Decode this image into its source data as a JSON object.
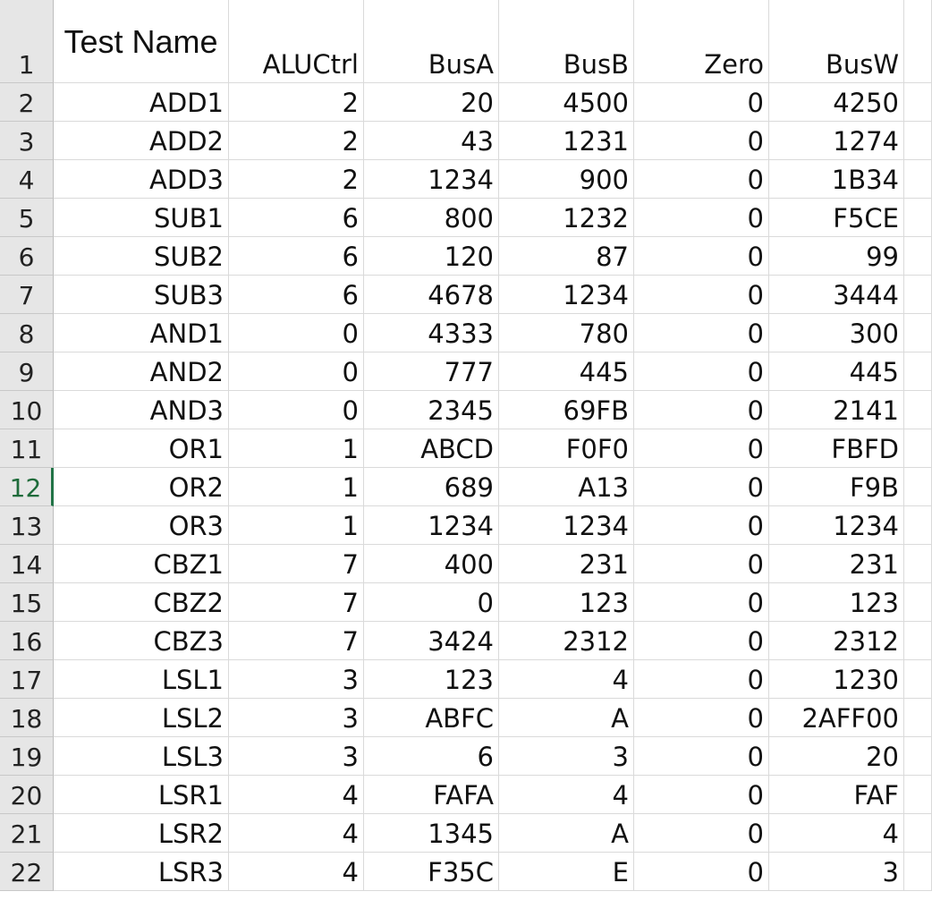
{
  "spreadsheet": {
    "headers": {
      "row_number": "1",
      "test_name": "Test Name",
      "alu_ctrl": "ALUCtrl",
      "bus_a": "BusA",
      "bus_b": "BusB",
      "zero": "Zero",
      "bus_w": "BusW"
    },
    "selected_row": "12",
    "accent_color": "#217346",
    "rows": [
      {
        "row": "2",
        "test_name": "ADD1",
        "alu_ctrl": "2",
        "bus_a": "20",
        "bus_b": "4500",
        "zero": "0",
        "bus_w": "4250"
      },
      {
        "row": "3",
        "test_name": "ADD2",
        "alu_ctrl": "2",
        "bus_a": "43",
        "bus_b": "1231",
        "zero": "0",
        "bus_w": "1274"
      },
      {
        "row": "4",
        "test_name": "ADD3",
        "alu_ctrl": "2",
        "bus_a": "1234",
        "bus_b": "900",
        "zero": "0",
        "bus_w": "1B34"
      },
      {
        "row": "5",
        "test_name": "SUB1",
        "alu_ctrl": "6",
        "bus_a": "800",
        "bus_b": "1232",
        "zero": "0",
        "bus_w": "F5CE"
      },
      {
        "row": "6",
        "test_name": "SUB2",
        "alu_ctrl": "6",
        "bus_a": "120",
        "bus_b": "87",
        "zero": "0",
        "bus_w": "99"
      },
      {
        "row": "7",
        "test_name": "SUB3",
        "alu_ctrl": "6",
        "bus_a": "4678",
        "bus_b": "1234",
        "zero": "0",
        "bus_w": "3444"
      },
      {
        "row": "8",
        "test_name": "AND1",
        "alu_ctrl": "0",
        "bus_a": "4333",
        "bus_b": "780",
        "zero": "0",
        "bus_w": "300"
      },
      {
        "row": "9",
        "test_name": "AND2",
        "alu_ctrl": "0",
        "bus_a": "777",
        "bus_b": "445",
        "zero": "0",
        "bus_w": "445"
      },
      {
        "row": "10",
        "test_name": "AND3",
        "alu_ctrl": "0",
        "bus_a": "2345",
        "bus_b": "69FB",
        "zero": "0",
        "bus_w": "2141"
      },
      {
        "row": "11",
        "test_name": "OR1",
        "alu_ctrl": "1",
        "bus_a": "ABCD",
        "bus_b": "F0F0",
        "zero": "0",
        "bus_w": "FBFD"
      },
      {
        "row": "12",
        "test_name": "OR2",
        "alu_ctrl": "1",
        "bus_a": "689",
        "bus_b": "A13",
        "zero": "0",
        "bus_w": "F9B"
      },
      {
        "row": "13",
        "test_name": "OR3",
        "alu_ctrl": "1",
        "bus_a": "1234",
        "bus_b": "1234",
        "zero": "0",
        "bus_w": "1234"
      },
      {
        "row": "14",
        "test_name": "CBZ1",
        "alu_ctrl": "7",
        "bus_a": "400",
        "bus_b": "231",
        "zero": "0",
        "bus_w": "231"
      },
      {
        "row": "15",
        "test_name": "CBZ2",
        "alu_ctrl": "7",
        "bus_a": "0",
        "bus_b": "123",
        "zero": "0",
        "bus_w": "123"
      },
      {
        "row": "16",
        "test_name": "CBZ3",
        "alu_ctrl": "7",
        "bus_a": "3424",
        "bus_b": "2312",
        "zero": "0",
        "bus_w": "2312"
      },
      {
        "row": "17",
        "test_name": "LSL1",
        "alu_ctrl": "3",
        "bus_a": "123",
        "bus_b": "4",
        "zero": "0",
        "bus_w": "1230"
      },
      {
        "row": "18",
        "test_name": "LSL2",
        "alu_ctrl": "3",
        "bus_a": "ABFC",
        "bus_b": "A",
        "zero": "0",
        "bus_w": "2AFF00"
      },
      {
        "row": "19",
        "test_name": "LSL3",
        "alu_ctrl": "3",
        "bus_a": "6",
        "bus_b": "3",
        "zero": "0",
        "bus_w": "20"
      },
      {
        "row": "20",
        "test_name": "LSR1",
        "alu_ctrl": "4",
        "bus_a": "FAFA",
        "bus_b": "4",
        "zero": "0",
        "bus_w": "FAF"
      },
      {
        "row": "21",
        "test_name": "LSR2",
        "alu_ctrl": "4",
        "bus_a": "1345",
        "bus_b": "A",
        "zero": "0",
        "bus_w": "4"
      },
      {
        "row": "22",
        "test_name": "LSR3",
        "alu_ctrl": "4",
        "bus_a": "F35C",
        "bus_b": "E",
        "zero": "0",
        "bus_w": "3"
      }
    ]
  }
}
